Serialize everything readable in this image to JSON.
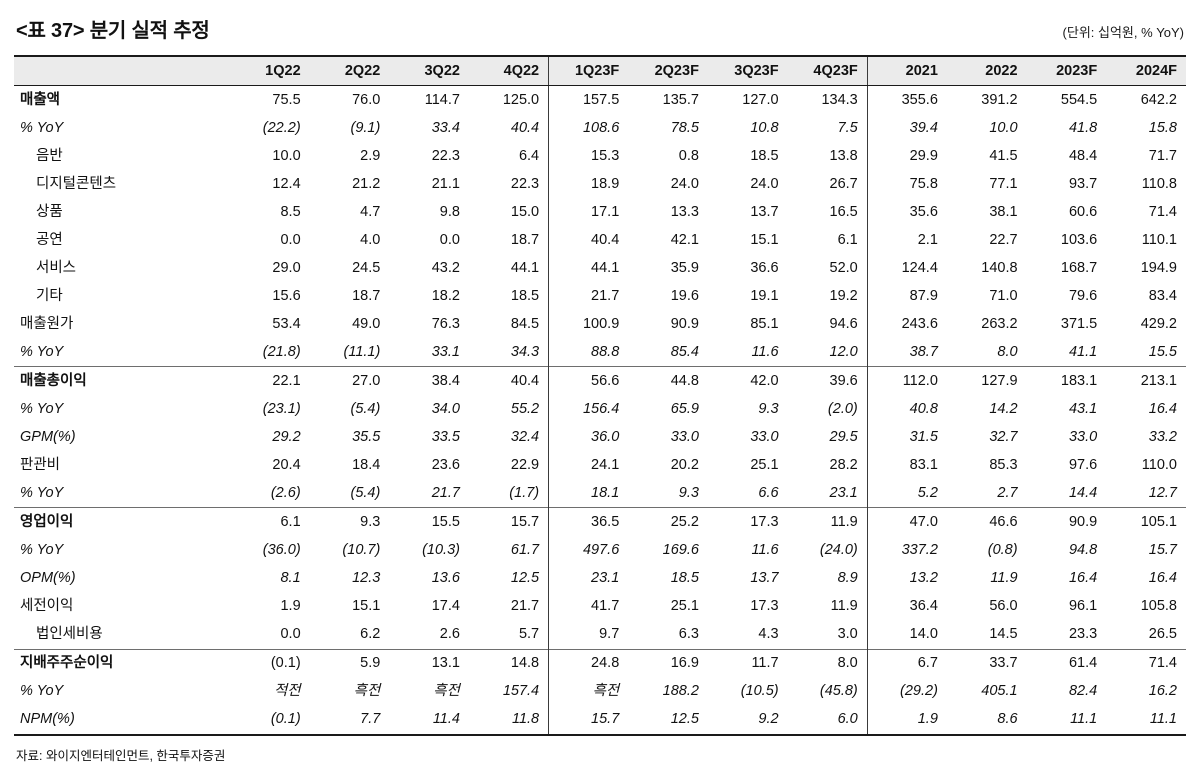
{
  "title": "<표 37> 분기 실적 추정",
  "unit_note": "(단위: 십억원, % YoY)",
  "source": "자료: 와이지엔터테인먼트, 한국투자증권",
  "table": {
    "columns": [
      "",
      "1Q22",
      "2Q22",
      "3Q22",
      "4Q22",
      "1Q23F",
      "2Q23F",
      "3Q23F",
      "4Q23F",
      "2021",
      "2022",
      "2023F",
      "2024F"
    ],
    "separator_cols": [
      5,
      9
    ],
    "rows": [
      {
        "label": "매출액",
        "cls": "bold",
        "values": [
          "75.5",
          "76.0",
          "114.7",
          "125.0",
          "157.5",
          "135.7",
          "127.0",
          "134.3",
          "355.6",
          "391.2",
          "554.5",
          "642.2"
        ]
      },
      {
        "label": "% YoY",
        "cls": "italic",
        "values": [
          "(22.2)",
          "(9.1)",
          "33.4",
          "40.4",
          "108.6",
          "78.5",
          "10.8",
          "7.5",
          "39.4",
          "10.0",
          "41.8",
          "15.8"
        ]
      },
      {
        "label": "음반",
        "cls": "indent",
        "values": [
          "10.0",
          "2.9",
          "22.3",
          "6.4",
          "15.3",
          "0.8",
          "18.5",
          "13.8",
          "29.9",
          "41.5",
          "48.4",
          "71.7"
        ]
      },
      {
        "label": "디지털콘텐츠",
        "cls": "indent",
        "values": [
          "12.4",
          "21.2",
          "21.1",
          "22.3",
          "18.9",
          "24.0",
          "24.0",
          "26.7",
          "75.8",
          "77.1",
          "93.7",
          "110.8"
        ]
      },
      {
        "label": "상품",
        "cls": "indent",
        "values": [
          "8.5",
          "4.7",
          "9.8",
          "15.0",
          "17.1",
          "13.3",
          "13.7",
          "16.5",
          "35.6",
          "38.1",
          "60.6",
          "71.4"
        ]
      },
      {
        "label": "공연",
        "cls": "indent",
        "values": [
          "0.0",
          "4.0",
          "0.0",
          "18.7",
          "40.4",
          "42.1",
          "15.1",
          "6.1",
          "2.1",
          "22.7",
          "103.6",
          "110.1"
        ]
      },
      {
        "label": "서비스",
        "cls": "indent",
        "values": [
          "29.0",
          "24.5",
          "43.2",
          "44.1",
          "44.1",
          "35.9",
          "36.6",
          "52.0",
          "124.4",
          "140.8",
          "168.7",
          "194.9"
        ]
      },
      {
        "label": "기타",
        "cls": "indent",
        "values": [
          "15.6",
          "18.7",
          "18.2",
          "18.5",
          "21.7",
          "19.6",
          "19.1",
          "19.2",
          "87.9",
          "71.0",
          "79.6",
          "83.4"
        ]
      },
      {
        "label": "매출원가",
        "cls": "",
        "values": [
          "53.4",
          "49.0",
          "76.3",
          "84.5",
          "100.9",
          "90.9",
          "85.1",
          "94.6",
          "243.6",
          "263.2",
          "371.5",
          "429.2"
        ]
      },
      {
        "label": "% YoY",
        "cls": "italic",
        "values": [
          "(21.8)",
          "(11.1)",
          "33.1",
          "34.3",
          "88.8",
          "85.4",
          "11.6",
          "12.0",
          "38.7",
          "8.0",
          "41.1",
          "15.5"
        ]
      },
      {
        "label": "매출총이익",
        "cls": "bold section",
        "values": [
          "22.1",
          "27.0",
          "38.4",
          "40.4",
          "56.6",
          "44.8",
          "42.0",
          "39.6",
          "112.0",
          "127.9",
          "183.1",
          "213.1"
        ]
      },
      {
        "label": "% YoY",
        "cls": "italic",
        "values": [
          "(23.1)",
          "(5.4)",
          "34.0",
          "55.2",
          "156.4",
          "65.9",
          "9.3",
          "(2.0)",
          "40.8",
          "14.2",
          "43.1",
          "16.4"
        ]
      },
      {
        "label": "GPM(%)",
        "cls": "italic",
        "values": [
          "29.2",
          "35.5",
          "33.5",
          "32.4",
          "36.0",
          "33.0",
          "33.0",
          "29.5",
          "31.5",
          "32.7",
          "33.0",
          "33.2"
        ]
      },
      {
        "label": "판관비",
        "cls": "",
        "values": [
          "20.4",
          "18.4",
          "23.6",
          "22.9",
          "24.1",
          "20.2",
          "25.1",
          "28.2",
          "83.1",
          "85.3",
          "97.6",
          "110.0"
        ]
      },
      {
        "label": "% YoY",
        "cls": "italic",
        "values": [
          "(2.6)",
          "(5.4)",
          "21.7",
          "(1.7)",
          "18.1",
          "9.3",
          "6.6",
          "23.1",
          "5.2",
          "2.7",
          "14.4",
          "12.7"
        ]
      },
      {
        "label": "영업이익",
        "cls": "bold section",
        "values": [
          "6.1",
          "9.3",
          "15.5",
          "15.7",
          "36.5",
          "25.2",
          "17.3",
          "11.9",
          "47.0",
          "46.6",
          "90.9",
          "105.1"
        ]
      },
      {
        "label": "% YoY",
        "cls": "italic",
        "values": [
          "(36.0)",
          "(10.7)",
          "(10.3)",
          "61.7",
          "497.6",
          "169.6",
          "11.6",
          "(24.0)",
          "337.2",
          "(0.8)",
          "94.8",
          "15.7"
        ]
      },
      {
        "label": "OPM(%)",
        "cls": "italic",
        "values": [
          "8.1",
          "12.3",
          "13.6",
          "12.5",
          "23.1",
          "18.5",
          "13.7",
          "8.9",
          "13.2",
          "11.9",
          "16.4",
          "16.4"
        ]
      },
      {
        "label": "세전이익",
        "cls": "",
        "values": [
          "1.9",
          "15.1",
          "17.4",
          "21.7",
          "41.7",
          "25.1",
          "17.3",
          "11.9",
          "36.4",
          "56.0",
          "96.1",
          "105.8"
        ]
      },
      {
        "label": "법인세비용",
        "cls": "indent",
        "values": [
          "0.0",
          "6.2",
          "2.6",
          "5.7",
          "9.7",
          "6.3",
          "4.3",
          "3.0",
          "14.0",
          "14.5",
          "23.3",
          "26.5"
        ]
      },
      {
        "label": "지배주주순이익",
        "cls": "bold section",
        "values": [
          "(0.1)",
          "5.9",
          "13.1",
          "14.8",
          "24.8",
          "16.9",
          "11.7",
          "8.0",
          "6.7",
          "33.7",
          "61.4",
          "71.4"
        ]
      },
      {
        "label": "% YoY",
        "cls": "italic",
        "values": [
          "적전",
          "흑전",
          "흑전",
          "157.4",
          "흑전",
          "188.2",
          "(10.5)",
          "(45.8)",
          "(29.2)",
          "405.1",
          "82.4",
          "16.2"
        ]
      },
      {
        "label": "NPM(%)",
        "cls": "italic",
        "values": [
          "(0.1)",
          "7.7",
          "11.4",
          "11.8",
          "15.7",
          "12.5",
          "9.2",
          "6.0",
          "1.9",
          "8.6",
          "11.1",
          "11.1"
        ]
      }
    ]
  }
}
